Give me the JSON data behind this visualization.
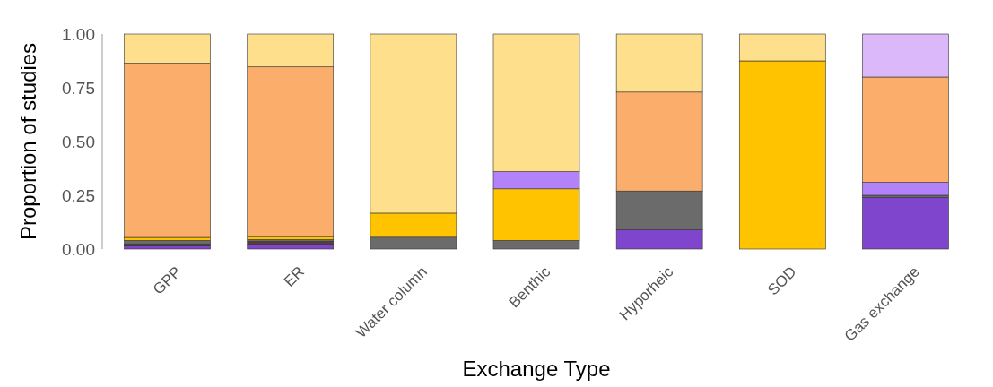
{
  "chart_data": {
    "type": "bar",
    "stacked": true,
    "xlabel": "Exchange Type",
    "ylabel": "Proportion of studies",
    "categories": [
      "GPP",
      "ER",
      "Water column",
      "Benthic",
      "Hyporheic",
      "SOD",
      "Gas exchange"
    ],
    "ylim": [
      0,
      1
    ],
    "yticks": [
      {
        "value": 0,
        "label": "0.00"
      },
      {
        "value": 0.25,
        "label": "0.25"
      },
      {
        "value": 0.5,
        "label": "0.50"
      },
      {
        "value": 0.75,
        "label": "0.75"
      },
      {
        "value": 1,
        "label": "1.00"
      }
    ],
    "grid": false,
    "series": [
      {
        "color": "#7f45cc",
        "values": [
          0.014,
          0.022,
          0,
          0,
          0.09,
          0,
          0.24
        ]
      },
      {
        "color": "#5a3a3a",
        "values": [
          0.01,
          0.014,
          0,
          0,
          0,
          0,
          0
        ]
      },
      {
        "color": "#6b6b6b",
        "values": [
          0.016,
          0.008,
          0.055,
          0.04,
          0.18,
          0,
          0.01
        ]
      },
      {
        "color": "#ffc300",
        "values": [
          0.014,
          0.014,
          0.112,
          0.24,
          0,
          0.875,
          0
        ]
      },
      {
        "color": "#b182f9",
        "values": [
          0,
          0,
          0,
          0.08,
          0,
          0,
          0.06
        ]
      },
      {
        "color": "#fbae6b",
        "values": [
          0.81,
          0.789,
          0,
          0,
          0.46,
          0,
          0.49
        ]
      },
      {
        "color": "#fedf8c",
        "values": [
          0.136,
          0.153,
          0.833,
          0.64,
          0.27,
          0.125,
          0
        ]
      },
      {
        "color": "#dab8fa",
        "values": [
          0,
          0,
          0,
          0,
          0,
          0,
          0.2
        ]
      }
    ]
  }
}
